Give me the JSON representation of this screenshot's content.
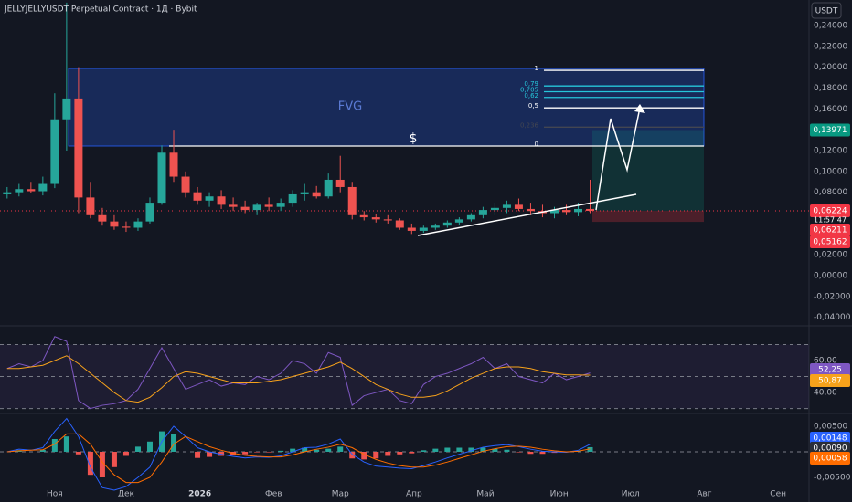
{
  "chart_data": [
    {
      "type": "candlestick",
      "title": "JELLYJELLYUSDT Perpetual Contract · 1Д · Bybit",
      "currency": "USDT",
      "x": [
        -20,
        -15,
        -10,
        -5,
        0,
        5,
        10,
        15,
        20,
        25,
        30,
        35,
        40,
        45,
        50,
        55,
        60,
        65,
        70,
        75,
        80,
        85,
        90,
        95,
        100,
        105,
        110,
        115,
        120,
        125,
        130,
        135,
        140,
        145,
        150,
        155,
        160,
        165,
        170,
        175,
        180,
        185,
        190,
        195,
        200,
        205,
        210,
        215,
        220,
        225
      ],
      "open": [
        0.078,
        0.08,
        0.083,
        0.081,
        0.088,
        0.15,
        0.17,
        0.075,
        0.058,
        0.052,
        0.047,
        0.046,
        0.052,
        0.07,
        0.118,
        0.095,
        0.08,
        0.072,
        0.076,
        0.068,
        0.066,
        0.063,
        0.068,
        0.066,
        0.07,
        0.078,
        0.08,
        0.076,
        0.092,
        0.085,
        0.058,
        0.056,
        0.054,
        0.053,
        0.046,
        0.043,
        0.046,
        0.048,
        0.051,
        0.054,
        0.058,
        0.063,
        0.065,
        0.068,
        0.064,
        0.062,
        0.06,
        0.063,
        0.061,
        0.064
      ],
      "high": [
        0.085,
        0.088,
        0.09,
        0.095,
        0.175,
        0.262,
        0.2,
        0.09,
        0.065,
        0.058,
        0.052,
        0.055,
        0.075,
        0.125,
        0.14,
        0.1,
        0.085,
        0.08,
        0.082,
        0.075,
        0.072,
        0.07,
        0.075,
        0.074,
        0.082,
        0.088,
        0.086,
        0.098,
        0.115,
        0.09,
        0.062,
        0.059,
        0.058,
        0.055,
        0.05,
        0.048,
        0.05,
        0.053,
        0.056,
        0.06,
        0.066,
        0.07,
        0.072,
        0.074,
        0.07,
        0.068,
        0.066,
        0.068,
        0.07,
        0.092
      ],
      "low": [
        0.074,
        0.076,
        0.079,
        0.077,
        0.084,
        0.12,
        0.06,
        0.055,
        0.048,
        0.044,
        0.042,
        0.043,
        0.05,
        0.068,
        0.09,
        0.075,
        0.068,
        0.066,
        0.064,
        0.062,
        0.06,
        0.058,
        0.062,
        0.062,
        0.066,
        0.072,
        0.074,
        0.074,
        0.08,
        0.054,
        0.053,
        0.051,
        0.05,
        0.044,
        0.04,
        0.041,
        0.044,
        0.046,
        0.049,
        0.052,
        0.055,
        0.058,
        0.06,
        0.062,
        0.058,
        0.056,
        0.055,
        0.058,
        0.057,
        0.06
      ],
      "close": [
        0.08,
        0.083,
        0.081,
        0.088,
        0.15,
        0.17,
        0.075,
        0.058,
        0.052,
        0.047,
        0.046,
        0.052,
        0.07,
        0.118,
        0.095,
        0.08,
        0.072,
        0.076,
        0.068,
        0.066,
        0.063,
        0.068,
        0.066,
        0.07,
        0.078,
        0.08,
        0.076,
        0.092,
        0.085,
        0.058,
        0.056,
        0.054,
        0.053,
        0.046,
        0.043,
        0.046,
        0.048,
        0.051,
        0.054,
        0.058,
        0.063,
        0.065,
        0.068,
        0.064,
        0.062,
        0.06,
        0.063,
        0.061,
        0.064,
        0.0622
      ],
      "up_color": "#26a69a",
      "down_color": "#ef5350",
      "xlim": [
        -23,
        317
      ],
      "xticks": [
        {
          "value": 0,
          "label": "Ноя"
        },
        {
          "value": 30,
          "label": "Дек"
        },
        {
          "value": 61,
          "label": "2026"
        },
        {
          "value": 92,
          "label": "Фев"
        },
        {
          "value": 120,
          "label": "Мар"
        },
        {
          "value": 151,
          "label": "Апр"
        },
        {
          "value": 181,
          "label": "Май"
        },
        {
          "value": 212,
          "label": "Июн"
        },
        {
          "value": 242,
          "label": "Июл"
        },
        {
          "value": 273,
          "label": "Авг"
        },
        {
          "value": 304,
          "label": "Сен"
        }
      ],
      "ylim": [
        -0.0464,
        0.2645
      ],
      "yticks": [
        {
          "value": 0.24,
          "label": "0,24000"
        },
        {
          "value": 0.22,
          "label": "0,22000"
        },
        {
          "value": 0.2,
          "label": "0,20000"
        },
        {
          "value": 0.18,
          "label": "0,18000"
        },
        {
          "value": 0.16,
          "label": "0,16000"
        },
        {
          "value": 0.14,
          "label": "0,14000"
        },
        {
          "value": 0.12,
          "label": "0,12000"
        },
        {
          "value": 0.1,
          "label": "0,10000"
        },
        {
          "value": 0.08,
          "label": "0,08000"
        },
        {
          "value": 0.06,
          "label": "0,06000"
        },
        {
          "value": 0.04,
          "label": "0,04000"
        },
        {
          "value": 0.02,
          "label": "0,02000"
        },
        {
          "value": 0,
          "label": "0,00000"
        },
        {
          "value": -0.02,
          "label": "-0,02000"
        },
        {
          "value": -0.04,
          "label": "-0,04000"
        }
      ],
      "price_labels": [
        {
          "value": 0.13971,
          "label": "0,13971",
          "color": "#089981"
        },
        {
          "value": 0.06224,
          "label": "0,06224",
          "color": "#f23645"
        },
        {
          "value": 0.06211,
          "label": "0,06211",
          "color": "#f23645"
        },
        {
          "value": 0.05162,
          "label": "0,05162",
          "color": "#f23645"
        }
      ],
      "countdown": "11:57:47",
      "fvg_label": "FVG",
      "liquidity_label": "$",
      "fib_levels": [
        {
          "value": 0.197,
          "label": "1",
          "color": "#ffffff"
        },
        {
          "value": 0.182,
          "label": "0,79",
          "color": "#26c6da"
        },
        {
          "value": 0.1765,
          "label": "0,705",
          "color": "#26c6da"
        },
        {
          "value": 0.171,
          "label": "0,62",
          "color": "#26c6da"
        },
        {
          "value": 0.161,
          "label": "0,5",
          "color": "#ffffff"
        },
        {
          "value": 0.1425,
          "label": "0,236",
          "color": "#434651"
        },
        {
          "value": 0.1244,
          "label": "0",
          "color": "#ffffff"
        }
      ]
    },
    {
      "type": "line",
      "series": [
        {
          "color": "#7e57c2",
          "values": [
            55,
            58,
            56,
            60,
            75,
            72,
            35,
            30,
            32,
            33,
            35,
            42,
            55,
            68,
            55,
            42,
            45,
            48,
            44,
            46,
            45,
            50,
            48,
            52,
            60,
            58,
            52,
            65,
            62,
            32,
            38,
            40,
            42,
            35,
            33,
            45,
            50,
            52,
            55,
            58,
            62,
            55,
            58,
            50,
            48,
            46,
            52,
            48,
            50,
            52.25
          ],
          "last_label": "52,25"
        },
        {
          "color": "#f7a21b",
          "values": [
            55,
            55,
            56,
            57,
            60,
            63,
            58,
            52,
            46,
            40,
            35,
            34,
            37,
            43,
            50,
            53,
            52,
            50,
            48,
            46,
            46,
            46,
            47,
            48,
            50,
            52,
            54,
            56,
            59,
            55,
            50,
            45,
            42,
            39,
            37,
            37,
            38,
            41,
            45,
            49,
            52,
            55,
            56,
            56,
            55,
            53,
            52,
            51,
            51,
            50.87
          ],
          "last_label": "50,87"
        }
      ],
      "ylim": [
        26.9,
        81.7
      ],
      "yticks": [
        {
          "value": 60,
          "label": "60,00"
        },
        {
          "value": 40,
          "label": "40,00"
        }
      ],
      "bands": [
        70,
        50,
        30
      ]
    },
    {
      "type": "macd",
      "histogram": {
        "color_up": "#26a69a",
        "color_down": "#ef5350",
        "values": [
          0,
          0.0003,
          0,
          0.0004,
          0.0025,
          0.003,
          -0.0005,
          -0.0045,
          -0.005,
          -0.003,
          -0.0008,
          0.001,
          0.002,
          0.004,
          0.0035,
          0,
          -0.0012,
          -0.001,
          -0.0008,
          -0.0006,
          -0.0005,
          -0.0001,
          -0.0001,
          0.0002,
          0.0006,
          0.0008,
          0.0004,
          0.0006,
          0.001,
          -0.0013,
          -0.0015,
          -0.0013,
          -0.0008,
          -0.0005,
          -0.0003,
          0.0003,
          0.0006,
          0.0008,
          0.0008,
          0.0008,
          0.0008,
          0.0006,
          0.0004,
          -0.0001,
          -0.0004,
          -0.0004,
          -0.0002,
          -0.0001,
          0.0002,
          0.0009
        ],
        "last_label": "0,00090"
      },
      "series": [
        {
          "color": "#2962ff",
          "values": [
            0,
            0.0005,
            0.0003,
            0.0008,
            0.004,
            0.0065,
            0.003,
            -0.003,
            -0.007,
            -0.0075,
            -0.0068,
            -0.005,
            -0.003,
            0.002,
            0.005,
            0.003,
            0.0008,
            0,
            -0.0005,
            -0.0009,
            -0.0012,
            -0.001,
            -0.0011,
            -0.0008,
            0,
            0.0008,
            0.0009,
            0.0015,
            0.0025,
            -0.0005,
            -0.002,
            -0.0028,
            -0.003,
            -0.0032,
            -0.0033,
            -0.0027,
            -0.002,
            -0.0012,
            -0.0005,
            0.0002,
            0.0009,
            0.0012,
            0.0014,
            0.001,
            0.0005,
            0.0001,
            0,
            -0.0001,
            0.0003,
            0.00148
          ],
          "last_label": "0,00148"
        },
        {
          "color": "#ff6d00",
          "values": [
            0,
            0.0002,
            0.0003,
            0.0004,
            0.0015,
            0.0035,
            0.0035,
            0.0015,
            -0.002,
            -0.0045,
            -0.006,
            -0.006,
            -0.005,
            -0.002,
            0.0015,
            0.003,
            0.002,
            0.001,
            0.0003,
            -0.0003,
            -0.0007,
            -0.0009,
            -0.001,
            -0.001,
            -0.0006,
            0,
            0.0005,
            0.0009,
            0.0015,
            0.0008,
            -0.0005,
            -0.0015,
            -0.0022,
            -0.0027,
            -0.003,
            -0.003,
            -0.0026,
            -0.002,
            -0.0013,
            -0.0006,
            0.0001,
            0.0006,
            0.001,
            0.0011,
            0.0009,
            0.0005,
            0.0002,
            0,
            0.0001,
            0.00058
          ],
          "last_label": "0,00058"
        }
      ],
      "ylim": [
        -0.00893,
        0.00714
      ],
      "yticks": [
        {
          "value": 0.005,
          "label": "0,00500"
        },
        {
          "value": -0.005,
          "label": "-0,00500"
        }
      ]
    }
  ]
}
